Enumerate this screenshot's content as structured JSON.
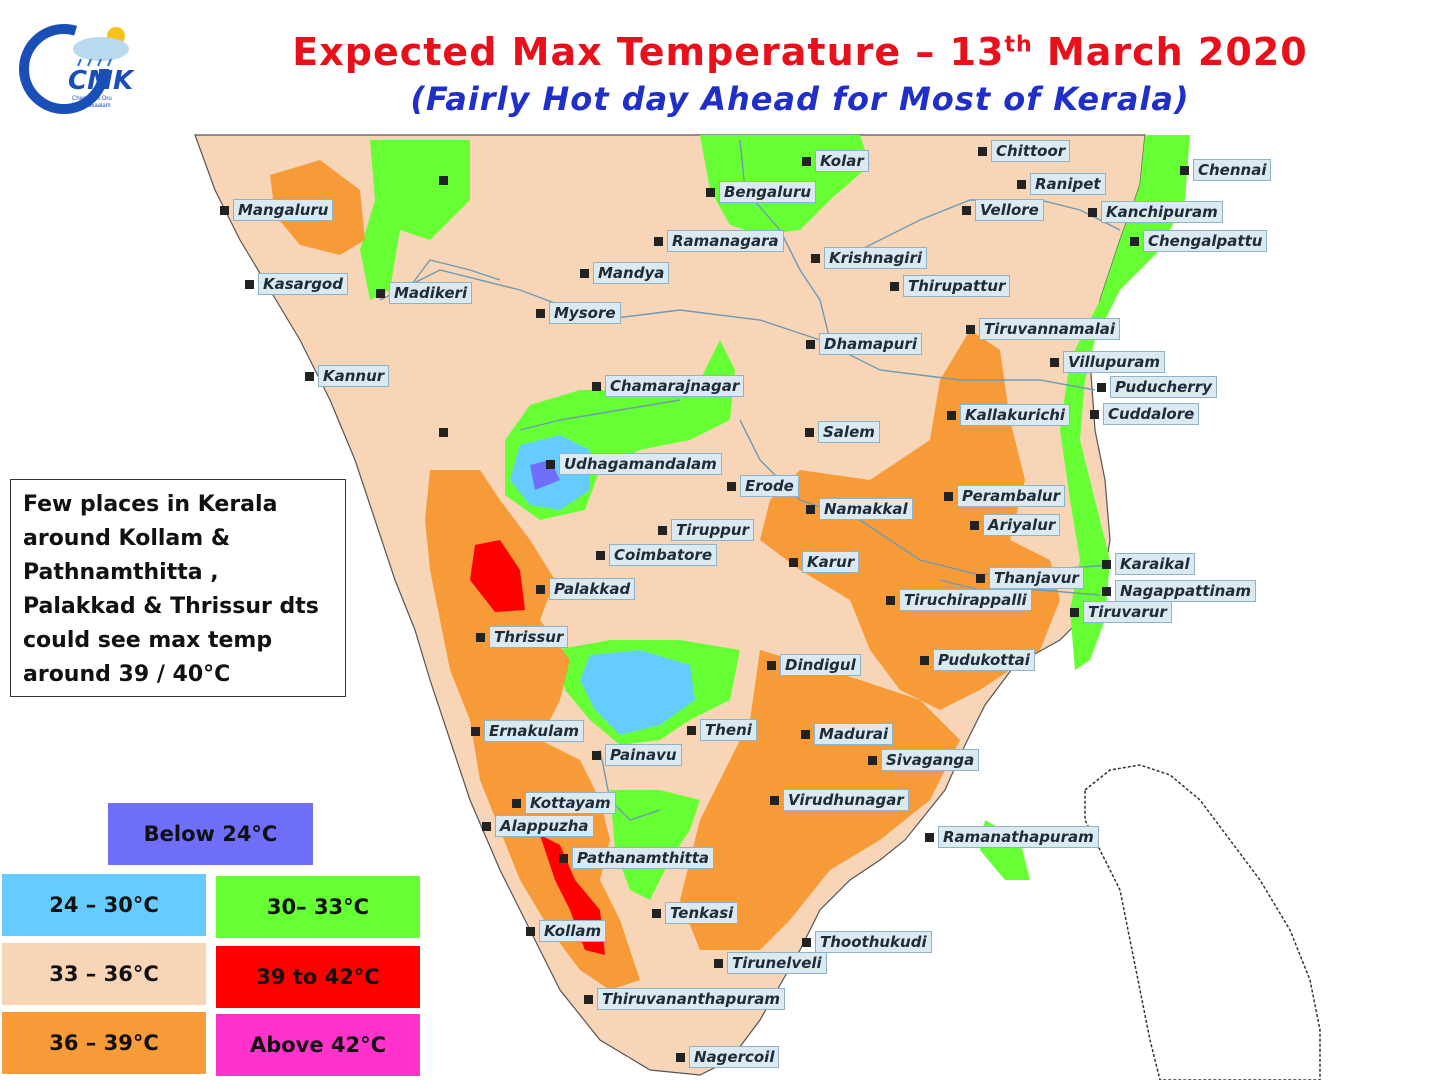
{
  "header": {
    "title_main": "Expected Max Temperature – 13",
    "title_sup": "th",
    "title_tail": " March 2020",
    "subtitle": "(Fairly Hot day Ahead for Most of Kerala)"
  },
  "logo": {
    "text": "CMK",
    "tagline": "Chennaiyil Oru Mazhaikaalam"
  },
  "note": "Few places in Kerala around Kollam & Pathnamthitta , Palakkad & Thrissur dts could see max temp around 39 / 40°C",
  "legend": [
    {
      "label": "Below 24°C",
      "color": "#6e6ef8"
    },
    {
      "label": "24 – 30°C",
      "color": "#66ccff"
    },
    {
      "label": "30– 33°C",
      "color": "#66ff33"
    },
    {
      "label": "33 – 36°C",
      "color": "#f9d5b8"
    },
    {
      "label": "39 to 42°C",
      "color": "#ff0000"
    },
    {
      "label": "36 – 39°C",
      "color": "#f79a38"
    },
    {
      "label": "Above 42°C",
      "color": "#ff33cc"
    }
  ],
  "cities": {
    "kolar": "Kolar",
    "chittoor": "Chittoor",
    "chennai": "Chennai",
    "bengaluru": "Bengaluru",
    "ranipet": "Ranipet",
    "mangaluru": "Mangaluru",
    "vellore": "Vellore",
    "kanchipuram": "Kanchipuram",
    "ramanagara": "Ramanagara",
    "chengalpattu": "Chengalpattu",
    "krishnagiri": "Krishnagiri",
    "mandya": "Mandya",
    "kasargod": "Kasargod",
    "thirupattur": "Thirupattur",
    "madikeri": "Madikeri",
    "mysore": "Mysore",
    "tiruvannamalai": "Tiruvannamalai",
    "dhamapuri": "Dhamapuri",
    "villupuram": "Villupuram",
    "kannur": "Kannur",
    "chamarajnagar": "Chamarajnagar",
    "puducherry": "Puducherry",
    "kallakurichi": "Kallakurichi",
    "cuddalore": "Cuddalore",
    "salem": "Salem",
    "udhagamandalam": "Udhagamandalam",
    "erode": "Erode",
    "perambalur": "Perambalur",
    "namakkal": "Namakkal",
    "ariyalur": "Ariyalur",
    "tiruppur": "Tiruppur",
    "coimbatore": "Coimbatore",
    "karaikal": "Karaikal",
    "karur": "Karur",
    "thanjavur": "Thanjavur",
    "palakkad": "Palakkad",
    "nagappattinam": "Nagappattinam",
    "tiruchirappalli": "Tiruchirappalli",
    "tiruvarur": "Tiruvarur",
    "thrissur": "Thrissur",
    "pudukottai": "Pudukottai",
    "dindigul": "Dindigul",
    "ernakulam": "Ernakulam",
    "theni": "Theni",
    "madurai": "Madurai",
    "painavu": "Painavu",
    "sivaganga": "Sivaganga",
    "kottayam": "Kottayam",
    "virudhunagar": "Virudhunagar",
    "alappuzha": "Alappuzha",
    "ramanathapuram": "Ramanathapuram",
    "pathanamthitta": "Pathanamthitta",
    "tenkasi": "Tenkasi",
    "kollam": "Kollam",
    "thoothukudi": "Thoothukudi",
    "tirunelveli": "Tirunelveli",
    "thiruvananthapuram": "Thiruvananthapuram",
    "nagercoil": "Nagercoil"
  }
}
